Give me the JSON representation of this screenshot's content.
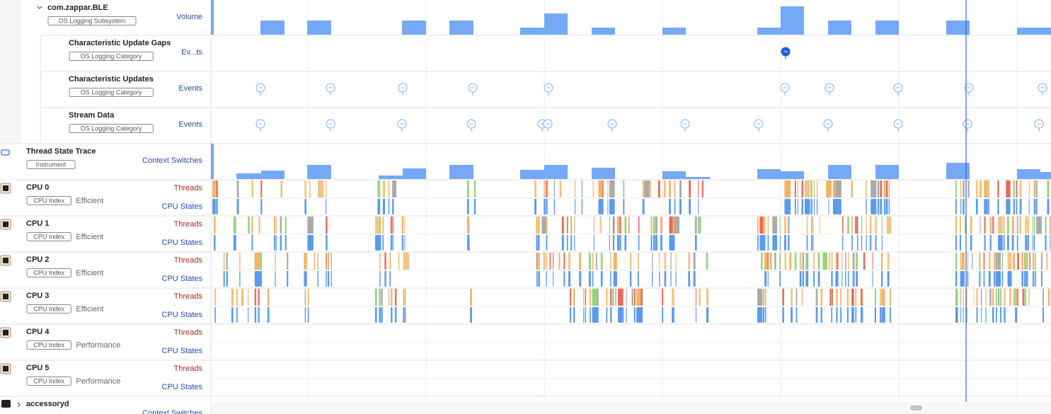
{
  "rows": [
    {
      "title": "com.zappar.BLE",
      "badge": "OS Logging Subsystem",
      "tracks": [
        "Volume"
      ]
    },
    {
      "title": "Characteristic Update Gaps",
      "badge": "OS Logging Category",
      "tracks": [
        "Ev...ts"
      ]
    },
    {
      "title": "Characteristic Updates",
      "badge": "OS Logging Category",
      "tracks": [
        "Events"
      ]
    },
    {
      "title": "Stream Data",
      "badge": "OS Logging Category",
      "tracks": [
        "Events"
      ]
    },
    {
      "title": "Thread State Trace",
      "badge": "Instrument",
      "tracks": [
        "Context Switches"
      ]
    },
    {
      "title": "CPU 0",
      "badge": "CPU Index",
      "subtitle": "Efficient",
      "tracks": [
        "Threads",
        "CPU States"
      ]
    },
    {
      "title": "CPU 1",
      "badge": "CPU Index",
      "subtitle": "Efficient",
      "tracks": [
        "Threads",
        "CPU States"
      ]
    },
    {
      "title": "CPU 2",
      "badge": "CPU Index",
      "subtitle": "Efficient",
      "tracks": [
        "Threads",
        "CPU States"
      ]
    },
    {
      "title": "CPU 3",
      "badge": "CPU Index",
      "subtitle": "Efficient",
      "tracks": [
        "Threads",
        "CPU States"
      ]
    },
    {
      "title": "CPU 4",
      "badge": "CPU Index",
      "subtitle": "Performance",
      "tracks": [
        "Threads",
        "CPU States"
      ]
    },
    {
      "title": "CPU 5",
      "badge": "CPU Index",
      "subtitle": "Performance",
      "tracks": [
        "Threads",
        "CPU States"
      ]
    },
    {
      "title": "accessoryd",
      "tracks": [
        "Context Switches"
      ]
    }
  ]
}
